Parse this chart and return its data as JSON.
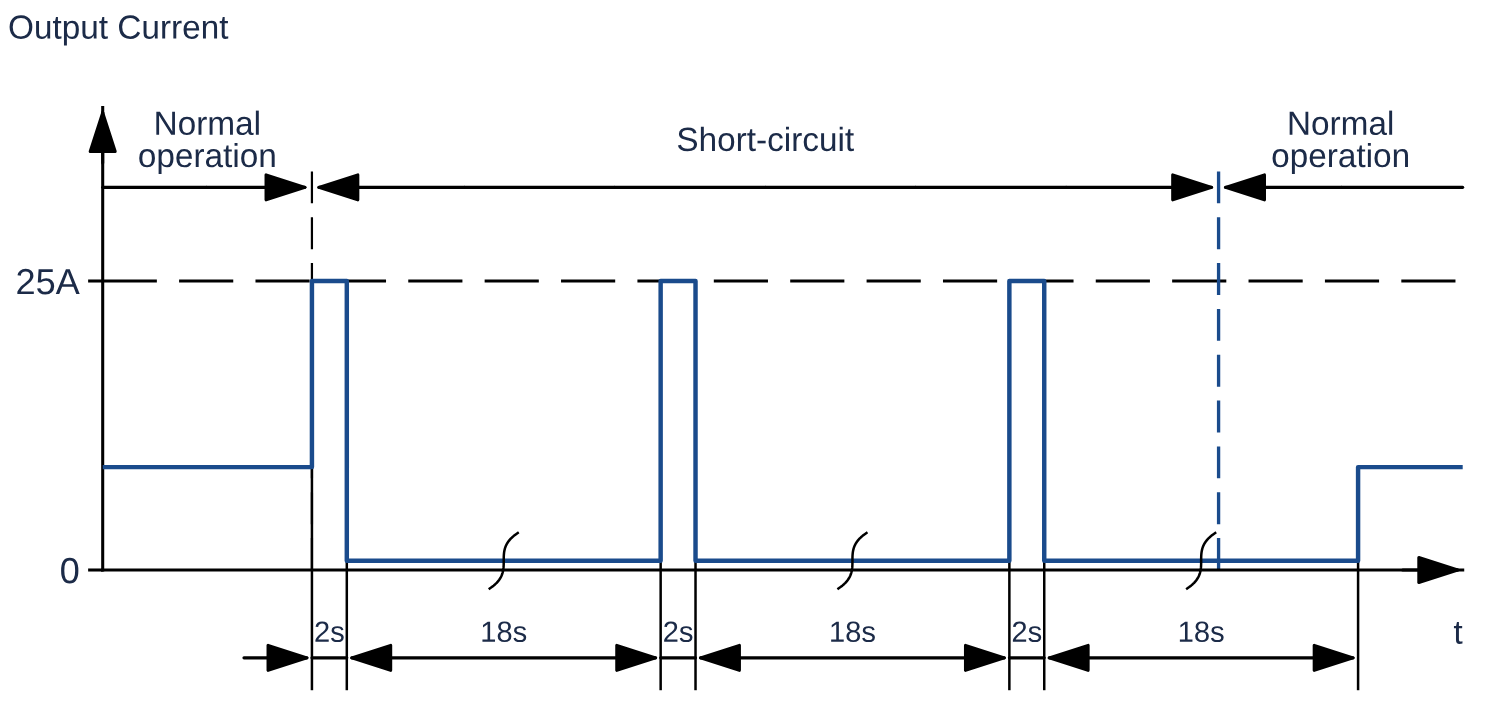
{
  "chart_data": {
    "type": "step",
    "title": "Output Current",
    "xlabel": "t",
    "categories": [
      null,
      null,
      null,
      null,
      null,
      null,
      null,
      null,
      null,
      null,
      null,
      null,
      null,
      null,
      null,
      null,
      null,
      null,
      null,
      null,
      null,
      null,
      null,
      null,
      null,
      null,
      null,
      null,
      null,
      null,
      null,
      null,
      null,
      null,
      null,
      null,
      null,
      null,
      null,
      null
    ],
    "series": [
      {
        "color": "#1a4b8c",
        "values": [
          8.9,
          8.9,
          8.9,
          8.9,
          8.9,
          8.9,
          25,
          0.8,
          0.8,
          0.8,
          0.8,
          0.8,
          0.8,
          0.8,
          0.8,
          0.8,
          25,
          0.8,
          0.8,
          0.8,
          0.8,
          0.8,
          0.8,
          0.8,
          0.8,
          0.8,
          25,
          0.8,
          0.8,
          0.8,
          0.8,
          0.8,
          0.8,
          0.8,
          0.8,
          0.8,
          8.9,
          8.9,
          8.9,
          8.9
        ]
      }
    ],
    "ylim": [
      0,
      40
    ],
    "yticks": [
      0,
      {
        "value": 25,
        "label": "25A"
      }
    ],
    "tick_labels": "y",
    "line_style": "solid",
    "ref_lines": [
      {
        "axis": "y",
        "value": 25,
        "color": "#000000",
        "line_style": "dashed"
      }
    ],
    "annotations": [
      "Normal\noperation",
      "Short-circuit",
      "Normal\noperation",
      "2s",
      "18s",
      "2s",
      "18s",
      "2s",
      "18s"
    ]
  }
}
